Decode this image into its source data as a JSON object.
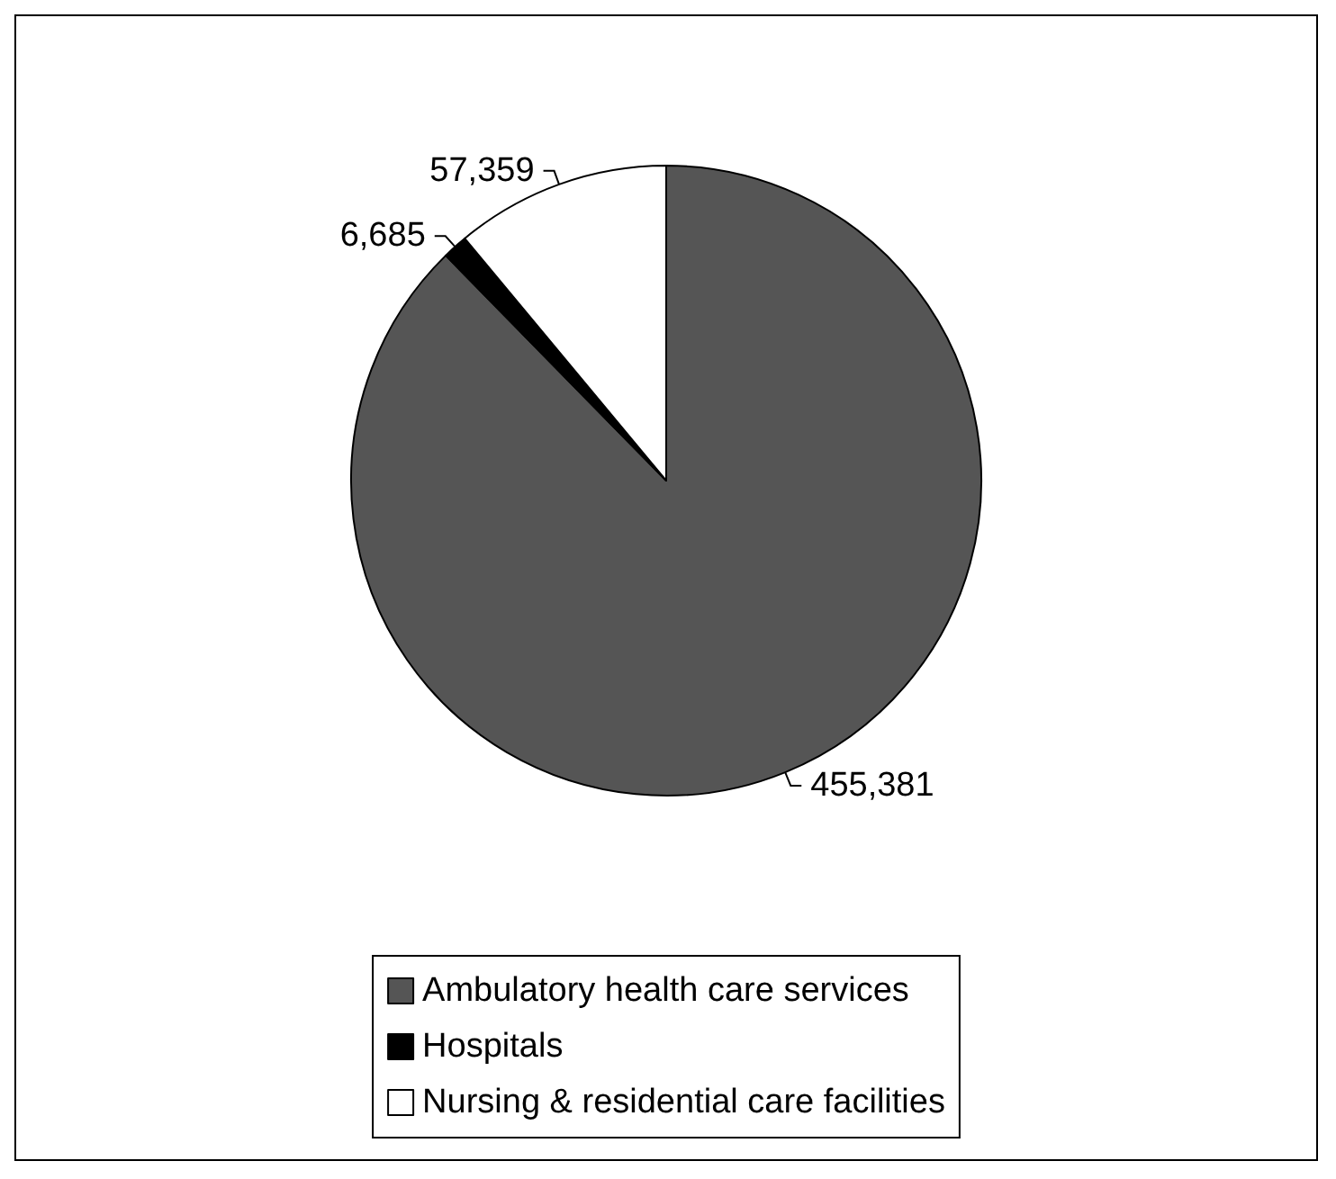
{
  "chart_data": {
    "type": "pie",
    "categories": [
      "Ambulatory health care services",
      "Hospitals",
      "Nursing & residential care facilities"
    ],
    "values": [
      455381,
      6685,
      57359
    ],
    "colors": [
      "#555555",
      "#000000",
      "#ffffff"
    ],
    "value_labels": [
      "455,381",
      "6,685",
      "57,359"
    ],
    "legend": "bottom"
  }
}
